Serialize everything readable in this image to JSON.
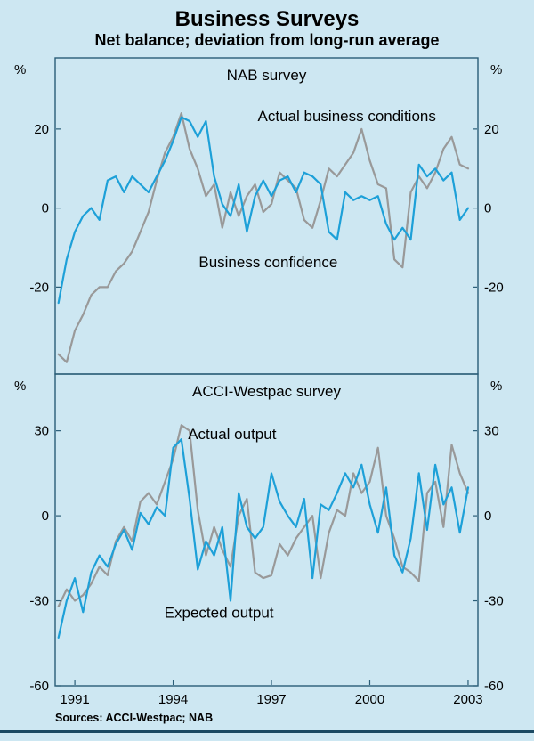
{
  "page": {
    "title": "Business Surveys",
    "subtitle": "Net balance; deviation from long-run average",
    "source_note": "Sources: ACCI-Westpac; NAB"
  },
  "colors": {
    "background": "#cde7f2",
    "frame": "#2a5d77",
    "line_blue": "#1da0d8",
    "line_gray": "#999999",
    "text": "#000000",
    "footer_rule": "#1b4a63"
  },
  "chart_data": {
    "type": "line",
    "title": "Business Surveys",
    "subtitle": "Net balance; deviation from long-run average",
    "x_unit": "year (quarterly observations)",
    "xlim": [
      1990.4,
      2003.3
    ],
    "x_ticks": [
      1991,
      1994,
      1997,
      2000,
      2003
    ],
    "grid": false,
    "legend": "in-chart text annotations",
    "x": [
      1990.5,
      1990.75,
      1991,
      1991.25,
      1991.5,
      1991.75,
      1992,
      1992.25,
      1992.5,
      1992.75,
      1993,
      1993.25,
      1993.5,
      1993.75,
      1994,
      1994.25,
      1994.5,
      1994.75,
      1995,
      1995.25,
      1995.5,
      1995.75,
      1996,
      1996.25,
      1996.5,
      1996.75,
      1997,
      1997.25,
      1997.5,
      1997.75,
      1998,
      1998.25,
      1998.5,
      1998.75,
      1999,
      1999.25,
      1999.5,
      1999.75,
      2000,
      2000.25,
      2000.5,
      2000.75,
      2001,
      2001.25,
      2001.5,
      2001.75,
      2002,
      2002.25,
      2002.5,
      2002.75,
      2003
    ],
    "panels": [
      {
        "label": "NAB survey",
        "ylabel": "%",
        "ylim": [
          -42,
          38
        ],
        "yticks": [
          20,
          0,
          -20
        ],
        "series": [
          {
            "name": "Actual business conditions",
            "color": "blue",
            "values": [
              -24,
              -13,
              -6,
              -2,
              0,
              -3,
              7,
              8,
              4,
              8,
              6,
              4,
              8,
              12,
              17,
              23,
              22,
              18,
              22,
              8,
              1,
              -2,
              6,
              -6,
              3,
              7,
              3,
              7,
              8,
              4,
              9,
              8,
              6,
              -6,
              -8,
              4,
              2,
              3,
              2,
              3,
              -4,
              -8,
              -5,
              -8,
              11,
              8,
              10,
              7,
              9,
              -3,
              0
            ]
          },
          {
            "name": "Business confidence",
            "color": "gray",
            "values": [
              -37,
              -39,
              -31,
              -27,
              -22,
              -20,
              -20,
              -16,
              -14,
              -11,
              -6,
              -1,
              7,
              14,
              18,
              24,
              15,
              10,
              3,
              6,
              -5,
              4,
              -2,
              3,
              6,
              -1,
              1,
              9,
              7,
              5,
              -3,
              -5,
              2,
              10,
              8,
              11,
              14,
              20,
              12,
              6,
              5,
              -13,
              -15,
              4,
              8,
              5,
              9,
              15,
              18,
              11,
              10
            ]
          }
        ],
        "annotations": [
          {
            "text": "Actual business conditions",
            "x": 1999.3,
            "y": 22
          },
          {
            "text": "Business confidence",
            "x": 1996.9,
            "y": -15
          }
        ]
      },
      {
        "label": "ACCI-Westpac survey",
        "ylabel": "%",
        "ylim": [
          -60,
          50
        ],
        "yticks": [
          30,
          0,
          -30,
          -60
        ],
        "series": [
          {
            "name": "Actual output",
            "color": "gray",
            "values": [
              -32,
              -26,
              -30,
              -28,
              -24,
              -18,
              -21,
              -9,
              -4,
              -9,
              5,
              8,
              4,
              12,
              20,
              32,
              30,
              2,
              -14,
              -4,
              -12,
              -18,
              0,
              6,
              -20,
              -22,
              -21,
              -10,
              -14,
              -8,
              -4,
              0,
              -22,
              -6,
              2,
              0,
              15,
              8,
              12,
              24,
              0,
              -8,
              -18,
              -20,
              -23,
              8,
              12,
              -4,
              25,
              15,
              8
            ]
          },
          {
            "name": "Expected output",
            "color": "blue",
            "values": [
              -43,
              -30,
              -22,
              -34,
              -20,
              -14,
              -18,
              -10,
              -5,
              -12,
              1,
              -3,
              3,
              0,
              24,
              27,
              6,
              -19,
              -9,
              -14,
              -4,
              -30,
              8,
              -4,
              -8,
              -4,
              15,
              5,
              0,
              -4,
              6,
              -22,
              4,
              2,
              8,
              15,
              10,
              18,
              4,
              -6,
              10,
              -14,
              -20,
              -8,
              15,
              -5,
              18,
              4,
              10,
              -6,
              10
            ]
          }
        ],
        "annotations": [
          {
            "text": "Actual output",
            "x": 1995.8,
            "y": 27
          },
          {
            "text": "Expected output",
            "x": 1995.4,
            "y": -36
          }
        ]
      }
    ],
    "source_note": "Sources: ACCI-Westpac; NAB"
  }
}
